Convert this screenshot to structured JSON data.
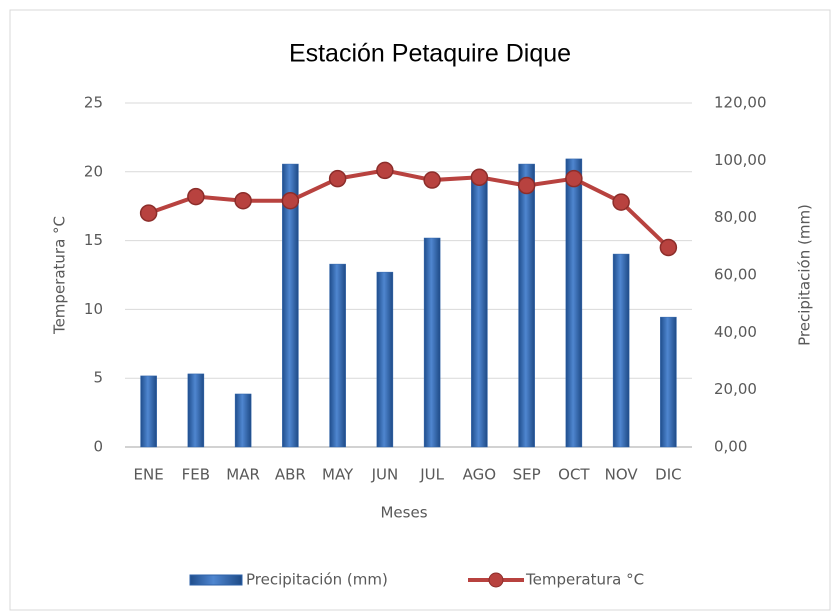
{
  "chart_data": {
    "type": "bar_line",
    "title": "Estación Petaquire Dique",
    "xlabel": "Meses",
    "ylabel": "Temperatura °C",
    "y2label": "Precipitación (mm)",
    "categories": [
      "ENE",
      "FEB",
      "MAR",
      "ABR",
      "MAY",
      "JUN",
      "JUL",
      "AGO",
      "SEP",
      "OCT",
      "NOV",
      "DIC"
    ],
    "series": [
      {
        "name": "Precipitación (mm)",
        "type": "bar",
        "axis": "y2",
        "color": "#2e62a8",
        "values": [
          24.8,
          25.5,
          18.5,
          98.7,
          63.8,
          61.0,
          72.9,
          93.5,
          98.7,
          100.5,
          67.3,
          45.3
        ]
      },
      {
        "name": "Temperatura °C",
        "type": "line",
        "axis": "y",
        "color": "#b8423f",
        "values": [
          17.0,
          18.2,
          17.9,
          17.9,
          19.5,
          20.1,
          19.4,
          19.6,
          19.0,
          19.5,
          17.8,
          14.5
        ]
      }
    ],
    "ylim": [
      0,
      25
    ],
    "yticks": [
      0,
      5,
      10,
      15,
      20,
      25
    ],
    "y2lim": [
      0,
      120
    ],
    "y2ticks": [
      {
        "value": 0,
        "label": "0,00"
      },
      {
        "value": 20,
        "label": "20,00"
      },
      {
        "value": 40,
        "label": "40,00"
      },
      {
        "value": 60,
        "label": "60,00"
      },
      {
        "value": 80,
        "label": "80,00"
      },
      {
        "value": 100,
        "label": "100,00"
      },
      {
        "value": 120,
        "label": "120,00"
      }
    ],
    "grid": true,
    "legend": "bottom"
  }
}
